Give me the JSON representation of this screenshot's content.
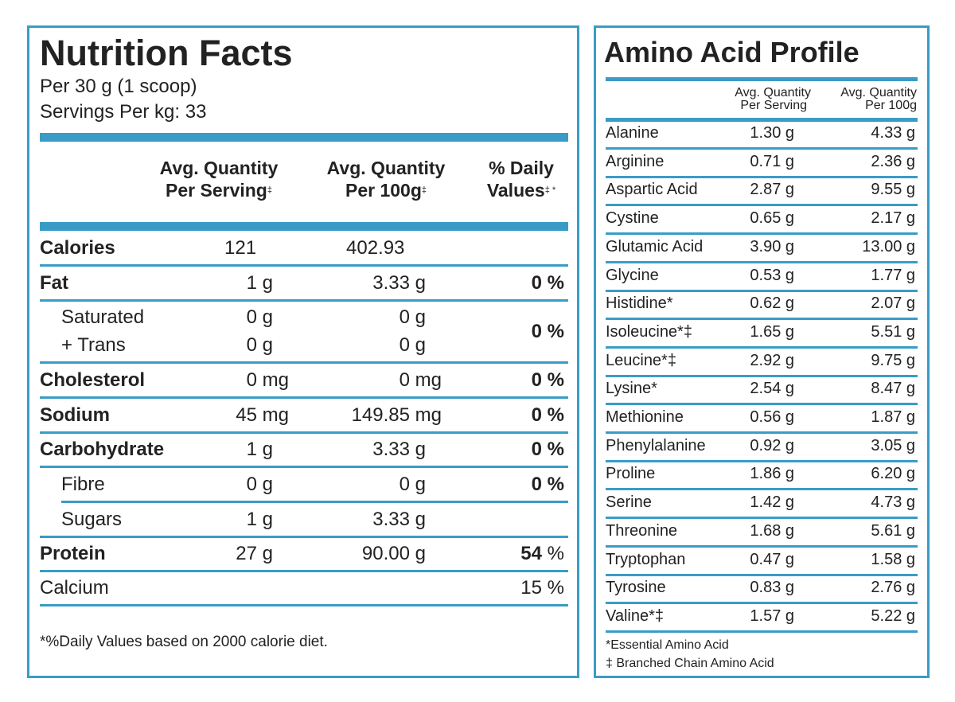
{
  "nutrition": {
    "title": "Nutrition Facts",
    "serving_size": "Per 30 g (1 scoop)",
    "servings": "Servings Per kg: 33",
    "headers": {
      "per_serving_1": "Avg. Quantity",
      "per_serving_2": "Per Serving",
      "per_serving_mark": "‡",
      "per_100g_1": "Avg. Quantity",
      "per_100g_2": "Per 100g",
      "per_100g_mark": "‡",
      "daily_1": "% Daily",
      "daily_2": "Values",
      "daily_mark": "‡ *"
    },
    "rows": [
      {
        "name": "Calories",
        "serving": "121",
        "per100": "402.93",
        "dv": ""
      },
      {
        "name": "Fat",
        "serving": "1 g",
        "per100": "3.33 g",
        "dv": "0 %"
      },
      {
        "name": "Saturated",
        "serving": "0 g",
        "per100": "0 g",
        "dv": "0 %"
      },
      {
        "name": "+ Trans",
        "serving": "0 g",
        "per100": "0 g",
        "dv": ""
      },
      {
        "name": "Cholesterol",
        "serving": "0 mg",
        "per100": "0 mg",
        "dv": "0 %"
      },
      {
        "name": "Sodium",
        "serving": "45 mg",
        "per100": "149.85 mg",
        "dv": "0 %"
      },
      {
        "name": "Carbohydrate",
        "serving": "1 g",
        "per100": "3.33 g",
        "dv": "0 %"
      },
      {
        "name": "Fibre",
        "serving": "0 g",
        "per100": "0 g",
        "dv": "0 %"
      },
      {
        "name": "Sugars",
        "serving": "1 g",
        "per100": "3.33 g",
        "dv": ""
      },
      {
        "name": "Protein",
        "serving": "27 g",
        "per100": "90.00 g",
        "dv_value": "54",
        "dv_unit": "%"
      },
      {
        "name": "Calcium",
        "serving": "",
        "per100": "",
        "dv": "15 %"
      }
    ],
    "footnote": "*%Daily Values based on 2000 calorie diet."
  },
  "amino": {
    "title": "Amino Acid Profile",
    "headers": {
      "serving_1": "Avg. Quantity",
      "serving_2": "Per Serving",
      "per100_1": "Avg. Quantity",
      "per100_2": "Per 100g"
    },
    "rows": [
      {
        "name": "Alanine",
        "serving": "1.30 g",
        "per100": "4.33 g"
      },
      {
        "name": "Arginine",
        "serving": "0.71 g",
        "per100": "2.36 g"
      },
      {
        "name": "Aspartic Acid",
        "serving": "2.87 g",
        "per100": "9.55 g"
      },
      {
        "name": "Cystine",
        "serving": "0.65 g",
        "per100": "2.17 g"
      },
      {
        "name": "Glutamic Acid",
        "serving": "3.90 g",
        "per100": "13.00 g"
      },
      {
        "name": "Glycine",
        "serving": "0.53 g",
        "per100": "1.77 g"
      },
      {
        "name": "Histidine*",
        "serving": "0.62 g",
        "per100": "2.07 g"
      },
      {
        "name": "Isoleucine*‡",
        "serving": "1.65 g",
        "per100": "5.51 g"
      },
      {
        "name": "Leucine*‡",
        "serving": "2.92 g",
        "per100": "9.75 g"
      },
      {
        "name": "Lysine*",
        "serving": "2.54 g",
        "per100": "8.47 g"
      },
      {
        "name": "Methionine",
        "serving": "0.56 g",
        "per100": "1.87 g"
      },
      {
        "name": "Phenylalanine",
        "serving": "0.92 g",
        "per100": "3.05 g"
      },
      {
        "name": "Proline",
        "serving": "1.86 g",
        "per100": "6.20 g"
      },
      {
        "name": "Serine",
        "serving": "1.42 g",
        "per100": "4.73 g"
      },
      {
        "name": "Threonine",
        "serving": "1.68 g",
        "per100": "5.61 g"
      },
      {
        "name": "Tryptophan",
        "serving": "0.47 g",
        "per100": "1.58 g"
      },
      {
        "name": "Tyrosine",
        "serving": "0.83 g",
        "per100": "2.76 g"
      },
      {
        "name": "Valine*‡",
        "serving": "1.57 g",
        "per100": "5.22 g"
      }
    ],
    "footnote_1": "*Essential Amino Acid",
    "footnote_2": "‡ Branched Chain Amino Acid"
  },
  "colors": {
    "accent": "#3a9cc6",
    "text": "#222222"
  }
}
